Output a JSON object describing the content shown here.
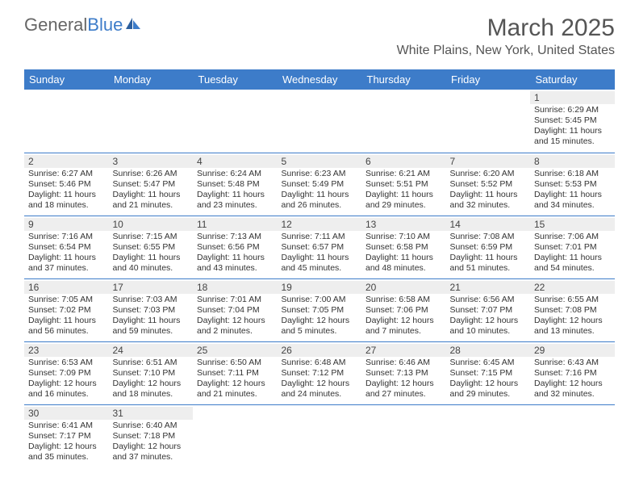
{
  "logo": {
    "text_gray": "General",
    "text_blue": "Blue"
  },
  "title": "March 2025",
  "location": "White Plains, New York, United States",
  "colors": {
    "header_bg": "#3d7cc9",
    "header_text": "#ffffff",
    "daynum_bg": "#eeeeee",
    "border": "#3d7cc9",
    "text": "#333333",
    "title_text": "#555555"
  },
  "weekdays": [
    "Sunday",
    "Monday",
    "Tuesday",
    "Wednesday",
    "Thursday",
    "Friday",
    "Saturday"
  ],
  "weeks": [
    [
      null,
      null,
      null,
      null,
      null,
      null,
      {
        "n": "1",
        "sr": "Sunrise: 6:29 AM",
        "ss": "Sunset: 5:45 PM",
        "dl": "Daylight: 11 hours and 15 minutes."
      }
    ],
    [
      {
        "n": "2",
        "sr": "Sunrise: 6:27 AM",
        "ss": "Sunset: 5:46 PM",
        "dl": "Daylight: 11 hours and 18 minutes."
      },
      {
        "n": "3",
        "sr": "Sunrise: 6:26 AM",
        "ss": "Sunset: 5:47 PM",
        "dl": "Daylight: 11 hours and 21 minutes."
      },
      {
        "n": "4",
        "sr": "Sunrise: 6:24 AM",
        "ss": "Sunset: 5:48 PM",
        "dl": "Daylight: 11 hours and 23 minutes."
      },
      {
        "n": "5",
        "sr": "Sunrise: 6:23 AM",
        "ss": "Sunset: 5:49 PM",
        "dl": "Daylight: 11 hours and 26 minutes."
      },
      {
        "n": "6",
        "sr": "Sunrise: 6:21 AM",
        "ss": "Sunset: 5:51 PM",
        "dl": "Daylight: 11 hours and 29 minutes."
      },
      {
        "n": "7",
        "sr": "Sunrise: 6:20 AM",
        "ss": "Sunset: 5:52 PM",
        "dl": "Daylight: 11 hours and 32 minutes."
      },
      {
        "n": "8",
        "sr": "Sunrise: 6:18 AM",
        "ss": "Sunset: 5:53 PM",
        "dl": "Daylight: 11 hours and 34 minutes."
      }
    ],
    [
      {
        "n": "9",
        "sr": "Sunrise: 7:16 AM",
        "ss": "Sunset: 6:54 PM",
        "dl": "Daylight: 11 hours and 37 minutes."
      },
      {
        "n": "10",
        "sr": "Sunrise: 7:15 AM",
        "ss": "Sunset: 6:55 PM",
        "dl": "Daylight: 11 hours and 40 minutes."
      },
      {
        "n": "11",
        "sr": "Sunrise: 7:13 AM",
        "ss": "Sunset: 6:56 PM",
        "dl": "Daylight: 11 hours and 43 minutes."
      },
      {
        "n": "12",
        "sr": "Sunrise: 7:11 AM",
        "ss": "Sunset: 6:57 PM",
        "dl": "Daylight: 11 hours and 45 minutes."
      },
      {
        "n": "13",
        "sr": "Sunrise: 7:10 AM",
        "ss": "Sunset: 6:58 PM",
        "dl": "Daylight: 11 hours and 48 minutes."
      },
      {
        "n": "14",
        "sr": "Sunrise: 7:08 AM",
        "ss": "Sunset: 6:59 PM",
        "dl": "Daylight: 11 hours and 51 minutes."
      },
      {
        "n": "15",
        "sr": "Sunrise: 7:06 AM",
        "ss": "Sunset: 7:01 PM",
        "dl": "Daylight: 11 hours and 54 minutes."
      }
    ],
    [
      {
        "n": "16",
        "sr": "Sunrise: 7:05 AM",
        "ss": "Sunset: 7:02 PM",
        "dl": "Daylight: 11 hours and 56 minutes."
      },
      {
        "n": "17",
        "sr": "Sunrise: 7:03 AM",
        "ss": "Sunset: 7:03 PM",
        "dl": "Daylight: 11 hours and 59 minutes."
      },
      {
        "n": "18",
        "sr": "Sunrise: 7:01 AM",
        "ss": "Sunset: 7:04 PM",
        "dl": "Daylight: 12 hours and 2 minutes."
      },
      {
        "n": "19",
        "sr": "Sunrise: 7:00 AM",
        "ss": "Sunset: 7:05 PM",
        "dl": "Daylight: 12 hours and 5 minutes."
      },
      {
        "n": "20",
        "sr": "Sunrise: 6:58 AM",
        "ss": "Sunset: 7:06 PM",
        "dl": "Daylight: 12 hours and 7 minutes."
      },
      {
        "n": "21",
        "sr": "Sunrise: 6:56 AM",
        "ss": "Sunset: 7:07 PM",
        "dl": "Daylight: 12 hours and 10 minutes."
      },
      {
        "n": "22",
        "sr": "Sunrise: 6:55 AM",
        "ss": "Sunset: 7:08 PM",
        "dl": "Daylight: 12 hours and 13 minutes."
      }
    ],
    [
      {
        "n": "23",
        "sr": "Sunrise: 6:53 AM",
        "ss": "Sunset: 7:09 PM",
        "dl": "Daylight: 12 hours and 16 minutes."
      },
      {
        "n": "24",
        "sr": "Sunrise: 6:51 AM",
        "ss": "Sunset: 7:10 PM",
        "dl": "Daylight: 12 hours and 18 minutes."
      },
      {
        "n": "25",
        "sr": "Sunrise: 6:50 AM",
        "ss": "Sunset: 7:11 PM",
        "dl": "Daylight: 12 hours and 21 minutes."
      },
      {
        "n": "26",
        "sr": "Sunrise: 6:48 AM",
        "ss": "Sunset: 7:12 PM",
        "dl": "Daylight: 12 hours and 24 minutes."
      },
      {
        "n": "27",
        "sr": "Sunrise: 6:46 AM",
        "ss": "Sunset: 7:13 PM",
        "dl": "Daylight: 12 hours and 27 minutes."
      },
      {
        "n": "28",
        "sr": "Sunrise: 6:45 AM",
        "ss": "Sunset: 7:15 PM",
        "dl": "Daylight: 12 hours and 29 minutes."
      },
      {
        "n": "29",
        "sr": "Sunrise: 6:43 AM",
        "ss": "Sunset: 7:16 PM",
        "dl": "Daylight: 12 hours and 32 minutes."
      }
    ],
    [
      {
        "n": "30",
        "sr": "Sunrise: 6:41 AM",
        "ss": "Sunset: 7:17 PM",
        "dl": "Daylight: 12 hours and 35 minutes."
      },
      {
        "n": "31",
        "sr": "Sunrise: 6:40 AM",
        "ss": "Sunset: 7:18 PM",
        "dl": "Daylight: 12 hours and 37 minutes."
      },
      null,
      null,
      null,
      null,
      null
    ]
  ]
}
